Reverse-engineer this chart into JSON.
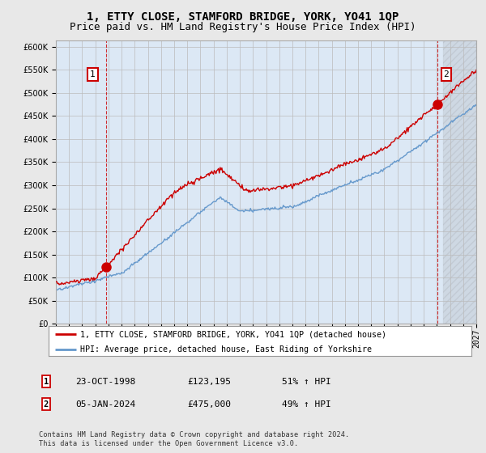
{
  "title": "1, ETTY CLOSE, STAMFORD BRIDGE, YORK, YO41 1QP",
  "subtitle": "Price paid vs. HM Land Registry's House Price Index (HPI)",
  "ylim": [
    0,
    612500
  ],
  "yticks": [
    0,
    50000,
    100000,
    150000,
    200000,
    250000,
    300000,
    350000,
    400000,
    450000,
    500000,
    550000,
    600000
  ],
  "background_color": "#e8e8e8",
  "plot_bg_color": "#dce8f5",
  "grid_color": "#bbbbbb",
  "sale1_date_num": 1998.81,
  "sale1_price": 123195,
  "sale2_date_num": 2024.01,
  "sale2_price": 475000,
  "legend_line1": "1, ETTY CLOSE, STAMFORD BRIDGE, YORK, YO41 1QP (detached house)",
  "legend_line2": "HPI: Average price, detached house, East Riding of Yorkshire",
  "table_row1": [
    "1",
    "23-OCT-1998",
    "£123,195",
    "51% ↑ HPI"
  ],
  "table_row2": [
    "2",
    "05-JAN-2024",
    "£475,000",
    "49% ↑ HPI"
  ],
  "footer": "Contains HM Land Registry data © Crown copyright and database right 2024.\nThis data is licensed under the Open Government Licence v3.0.",
  "hpi_color": "#6699cc",
  "price_color": "#cc0000",
  "title_fontsize": 10,
  "subtitle_fontsize": 9,
  "tick_fontsize": 7,
  "xmin": 1995,
  "xmax": 2027
}
